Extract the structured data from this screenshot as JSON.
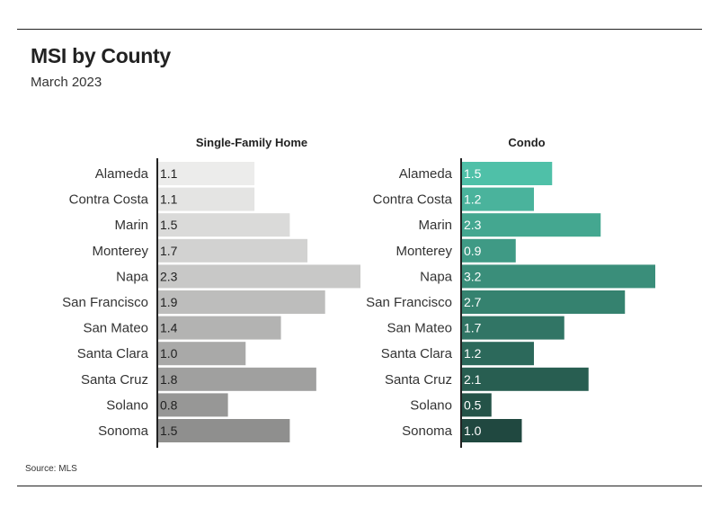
{
  "header": {
    "title": "MSI by County",
    "subtitle": "March 2023"
  },
  "footer": {
    "source": "Source: MLS"
  },
  "chart_data": [
    {
      "type": "bar",
      "orientation": "horizontal",
      "title": "Single-Family Home",
      "categories": [
        "Alameda",
        "Contra Costa",
        "Marin",
        "Monterey",
        "Napa",
        "San Francisco",
        "San Mateo",
        "Santa Clara",
        "Santa Cruz",
        "Solano",
        "Sonoma"
      ],
      "values": [
        1.1,
        1.1,
        1.5,
        1.7,
        2.3,
        1.9,
        1.4,
        1.0,
        1.8,
        0.8,
        1.5
      ],
      "labels": [
        "1.1",
        "1.1",
        "1.5",
        "1.7",
        "2.3",
        "1.9",
        "1.4",
        "1.0",
        "1.8",
        "0.8",
        "1.5"
      ],
      "xlim": [
        0,
        2.3
      ],
      "grid": false,
      "colors": [
        "#ececeb",
        "#e4e4e3",
        "#dadad9",
        "#d2d2d1",
        "#c8c8c7",
        "#bdbdbc",
        "#b3b3b2",
        "#a9a9a8",
        "#a0a09f",
        "#979796",
        "#8f8f8e"
      ],
      "label_color": "#222222"
    },
    {
      "type": "bar",
      "orientation": "horizontal",
      "title": "Condo",
      "categories": [
        "Alameda",
        "Contra Costa",
        "Marin",
        "Monterey",
        "Napa",
        "San Francisco",
        "San Mateo",
        "Santa Clara",
        "Santa Cruz",
        "Solano",
        "Sonoma"
      ],
      "values": [
        1.5,
        1.2,
        2.3,
        0.9,
        3.2,
        2.7,
        1.7,
        1.2,
        2.1,
        0.5,
        1.0
      ],
      "labels": [
        "1.5",
        "1.2",
        "2.3",
        "0.9",
        "3.2",
        "2.7",
        "1.7",
        "1.2",
        "2.1",
        "0.5",
        "1.0"
      ],
      "xlim": [
        0,
        3.2
      ],
      "grid": false,
      "colors": [
        "#4fc0a8",
        "#4ab39c",
        "#44a790",
        "#3f9a85",
        "#3a8e7a",
        "#35826f",
        "#317565",
        "#2c695b",
        "#285e51",
        "#245348",
        "#204840"
      ],
      "label_color": "#ffffff"
    }
  ]
}
